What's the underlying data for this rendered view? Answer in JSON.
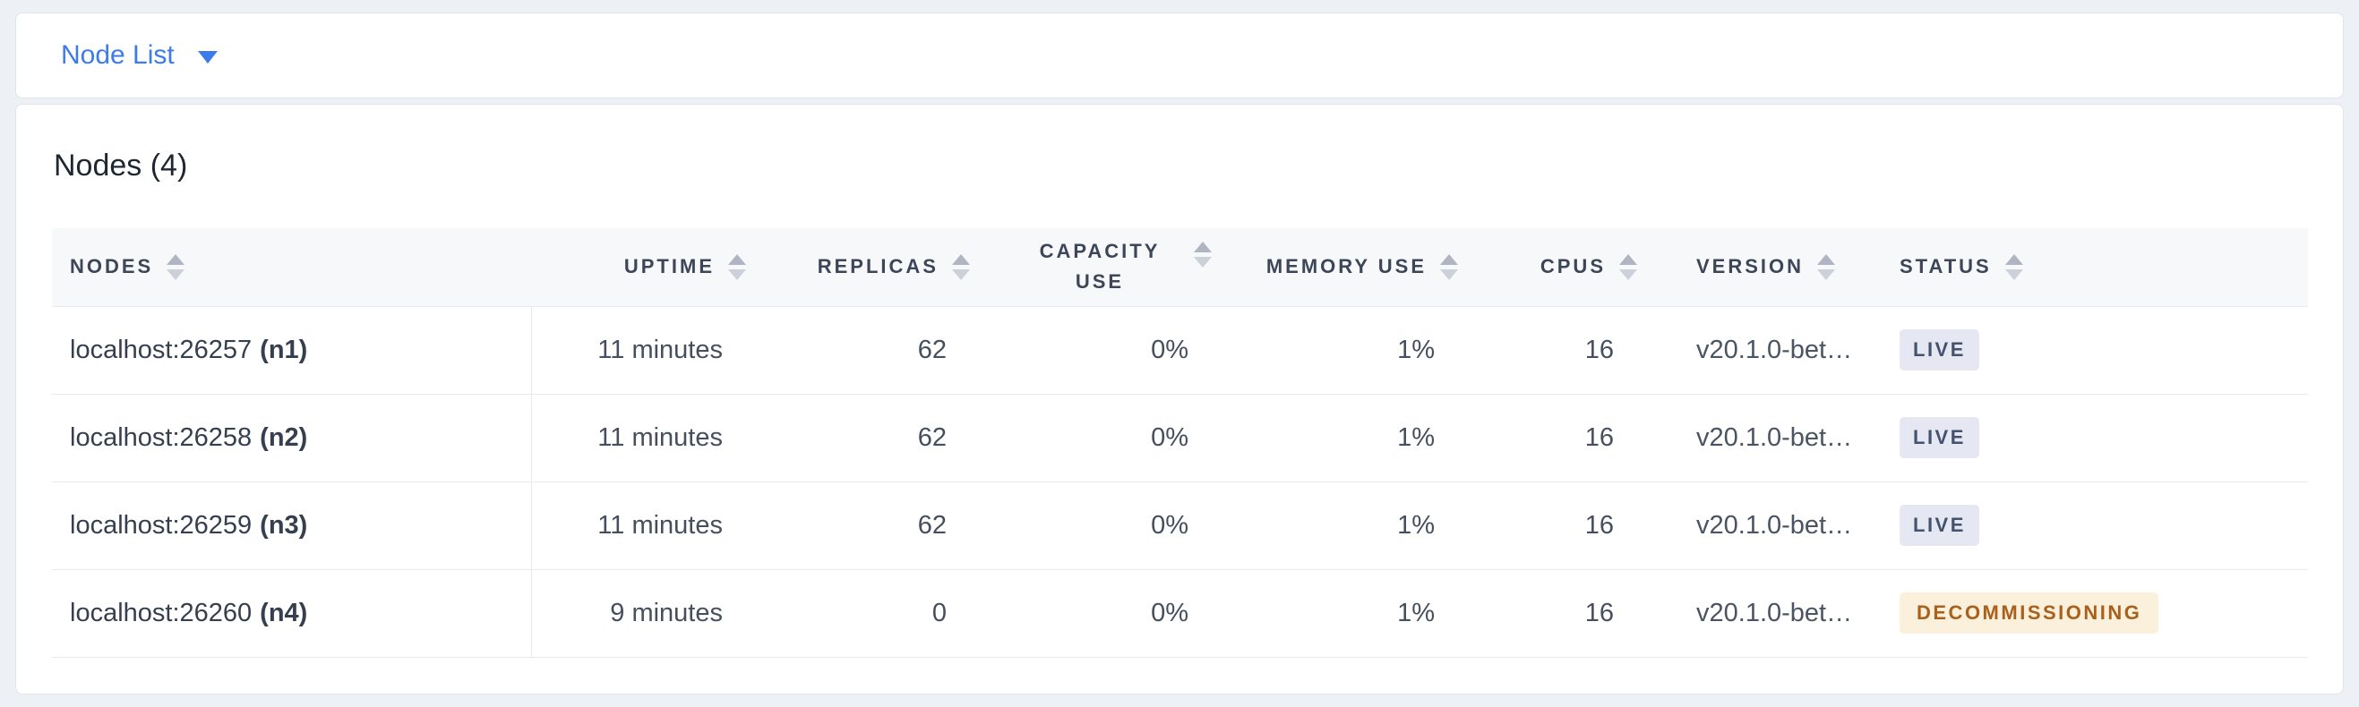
{
  "view_selector": {
    "label": "Node List"
  },
  "panel": {
    "title": "Nodes (4)"
  },
  "colors": {
    "accent_blue": "#3B7CEA",
    "page_background": "#EDF1F6",
    "header_background": "#F7F8FA",
    "live_badge_bg": "#E5E8F2",
    "live_badge_text": "#44526E",
    "decommissioning_badge_bg": "#FBF0DC",
    "decommissioning_badge_text": "#A9601A"
  },
  "table": {
    "columns": {
      "nodes": "NODES",
      "uptime": "UPTIME",
      "replicas": "REPLICAS",
      "capacity_use": "CAPACITY USE",
      "memory_use": "MEMORY USE",
      "cpus": "CPUS",
      "version": "VERSION",
      "status": "STATUS"
    },
    "rows": [
      {
        "address": "localhost:26257",
        "node_id": "(n1)",
        "uptime": "11 minutes",
        "replicas": "62",
        "capacity_use": "0%",
        "memory_use": "1%",
        "cpus": "16",
        "version": "v20.1.0-bet…",
        "status": "LIVE",
        "status_type": "live"
      },
      {
        "address": "localhost:26258",
        "node_id": "(n2)",
        "uptime": "11 minutes",
        "replicas": "62",
        "capacity_use": "0%",
        "memory_use": "1%",
        "cpus": "16",
        "version": "v20.1.0-bet…",
        "status": "LIVE",
        "status_type": "live"
      },
      {
        "address": "localhost:26259",
        "node_id": "(n3)",
        "uptime": "11 minutes",
        "replicas": "62",
        "capacity_use": "0%",
        "memory_use": "1%",
        "cpus": "16",
        "version": "v20.1.0-bet…",
        "status": "LIVE",
        "status_type": "live"
      },
      {
        "address": "localhost:26260",
        "node_id": "(n4)",
        "uptime": "9 minutes",
        "replicas": "0",
        "capacity_use": "0%",
        "memory_use": "1%",
        "cpus": "16",
        "version": "v20.1.0-bet…",
        "status": "DECOMMISSIONING",
        "status_type": "decommissioning"
      }
    ]
  }
}
